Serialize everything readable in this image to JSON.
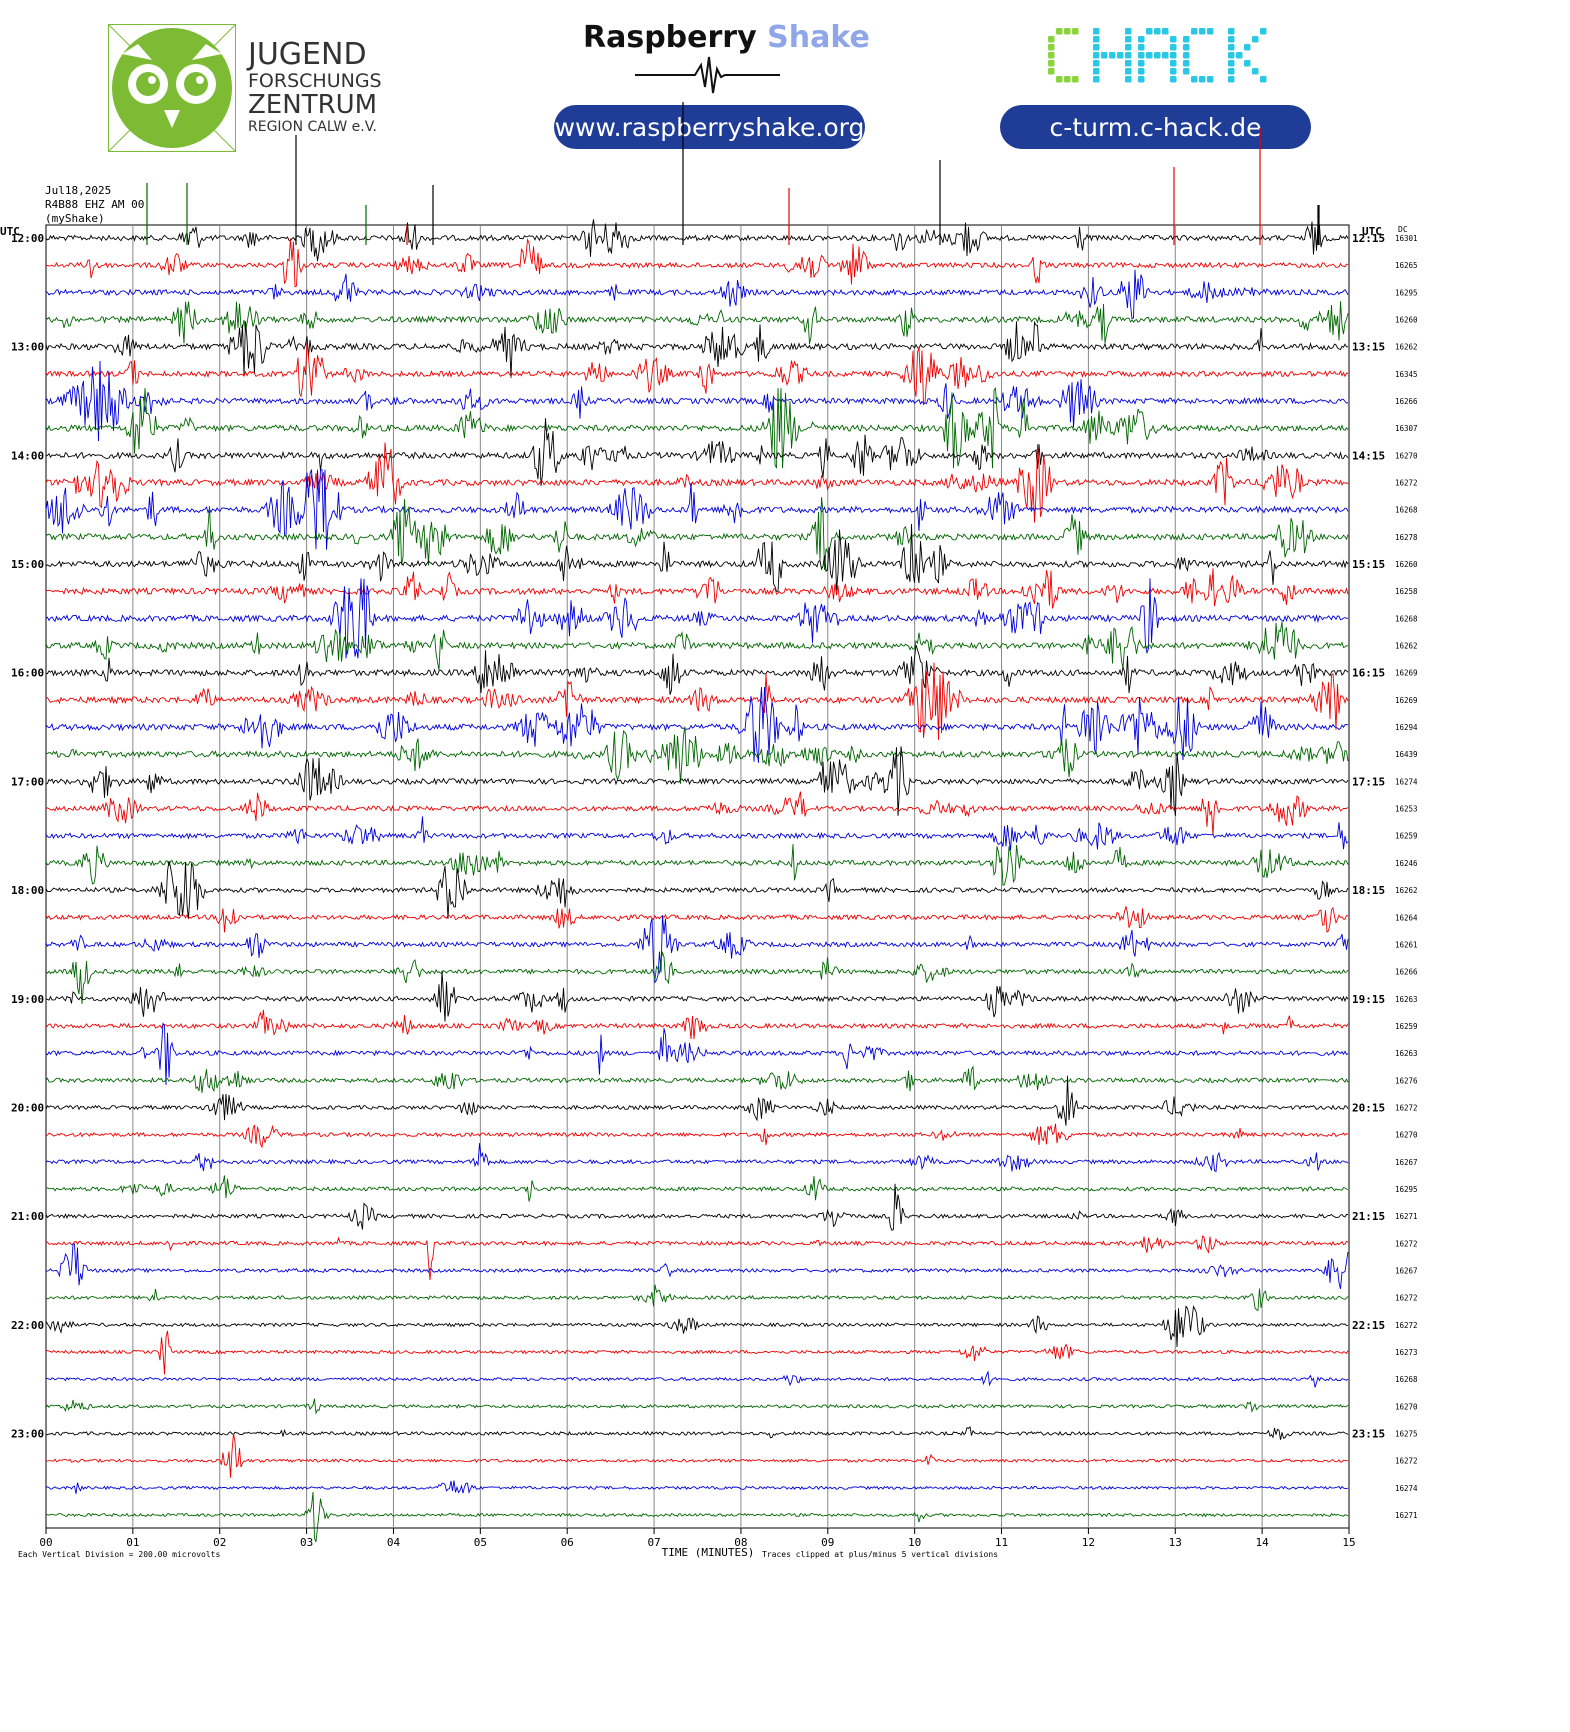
{
  "logos": {
    "jfz": {
      "line1": "JUGEND",
      "line2": "FORSCHUNGS",
      "line3": "ZENTRUM",
      "line4": "REGION CALW e.V.",
      "color": "#7dbb34"
    },
    "raspberry_shake": {
      "word1": "Raspberry",
      "word2": "Shake",
      "url": "www.raspberryshake.org",
      "accent": "#8fa6e8"
    },
    "chack": {
      "text": "CHACK",
      "url": "c-turm.c-hack.de",
      "color_green": "#8ad33a",
      "color_cyan": "#29c9e6"
    },
    "pill_color": "#1f3c97"
  },
  "header": {
    "date": "Jul18,2025",
    "station": "R4B88 EHZ AM 00",
    "source": "(myShake)",
    "utc_left": "UTC",
    "utc_right": "UTC",
    "dc_label": "DC"
  },
  "chart_data": {
    "type": "line",
    "title": "",
    "xlabel": "TIME (MINUTES)",
    "x_ticks": [
      "00",
      "01",
      "02",
      "03",
      "04",
      "05",
      "06",
      "07",
      "08",
      "09",
      "10",
      "11",
      "12",
      "13",
      "14",
      "15"
    ],
    "xlim": [
      0,
      15
    ],
    "trace_colors": [
      "#000000",
      "#ee0000",
      "#0000dd",
      "#006600"
    ],
    "left_hour_labels": [
      "12:00",
      "13:00",
      "14:00",
      "15:00",
      "16:00",
      "17:00",
      "18:00",
      "19:00",
      "20:00",
      "21:00",
      "22:00",
      "23:00"
    ],
    "right_hour_labels": [
      "12:15",
      "13:15",
      "14:15",
      "15:15",
      "16:15",
      "17:15",
      "18:15",
      "19:15",
      "20:15",
      "21:15",
      "22:15",
      "23:15"
    ],
    "dc_offsets": [
      16301,
      16265,
      16295,
      16260,
      16262,
      16345,
      16266,
      16307,
      16270,
      16272,
      16268,
      16278,
      16260,
      16258,
      16268,
      16262,
      16269,
      16269,
      16294,
      16439,
      16274,
      16253,
      16259,
      16246,
      16262,
      16264,
      16261,
      16266,
      16263,
      16259,
      16263,
      16276,
      16272,
      16270,
      16267,
      16295,
      16271,
      16272,
      16267,
      16272,
      16272,
      16273,
      16268,
      16270,
      16275,
      16272,
      16274,
      16271
    ],
    "activity_level": [
      0.8,
      0.7,
      0.8,
      0.9,
      1.0,
      0.8,
      0.9,
      1.0,
      1.0,
      1.0,
      1.0,
      1.0,
      1.0,
      1.0,
      1.0,
      1.0,
      1.0,
      1.0,
      1.0,
      1.0,
      0.8,
      0.7,
      0.7,
      0.7,
      0.6,
      0.6,
      0.6,
      0.6,
      0.6,
      0.6,
      0.6,
      0.5,
      0.4,
      0.4,
      0.4,
      0.4,
      0.4,
      0.4,
      0.3,
      0.3,
      0.25,
      0.2,
      0.2,
      0.2,
      0.25,
      0.15,
      0.15,
      0.15
    ],
    "footer_left": "Each Vertical Division =  200.00 microvolts",
    "footer_right": "Traces clipped at plus/minus 5 vertical divisions"
  }
}
